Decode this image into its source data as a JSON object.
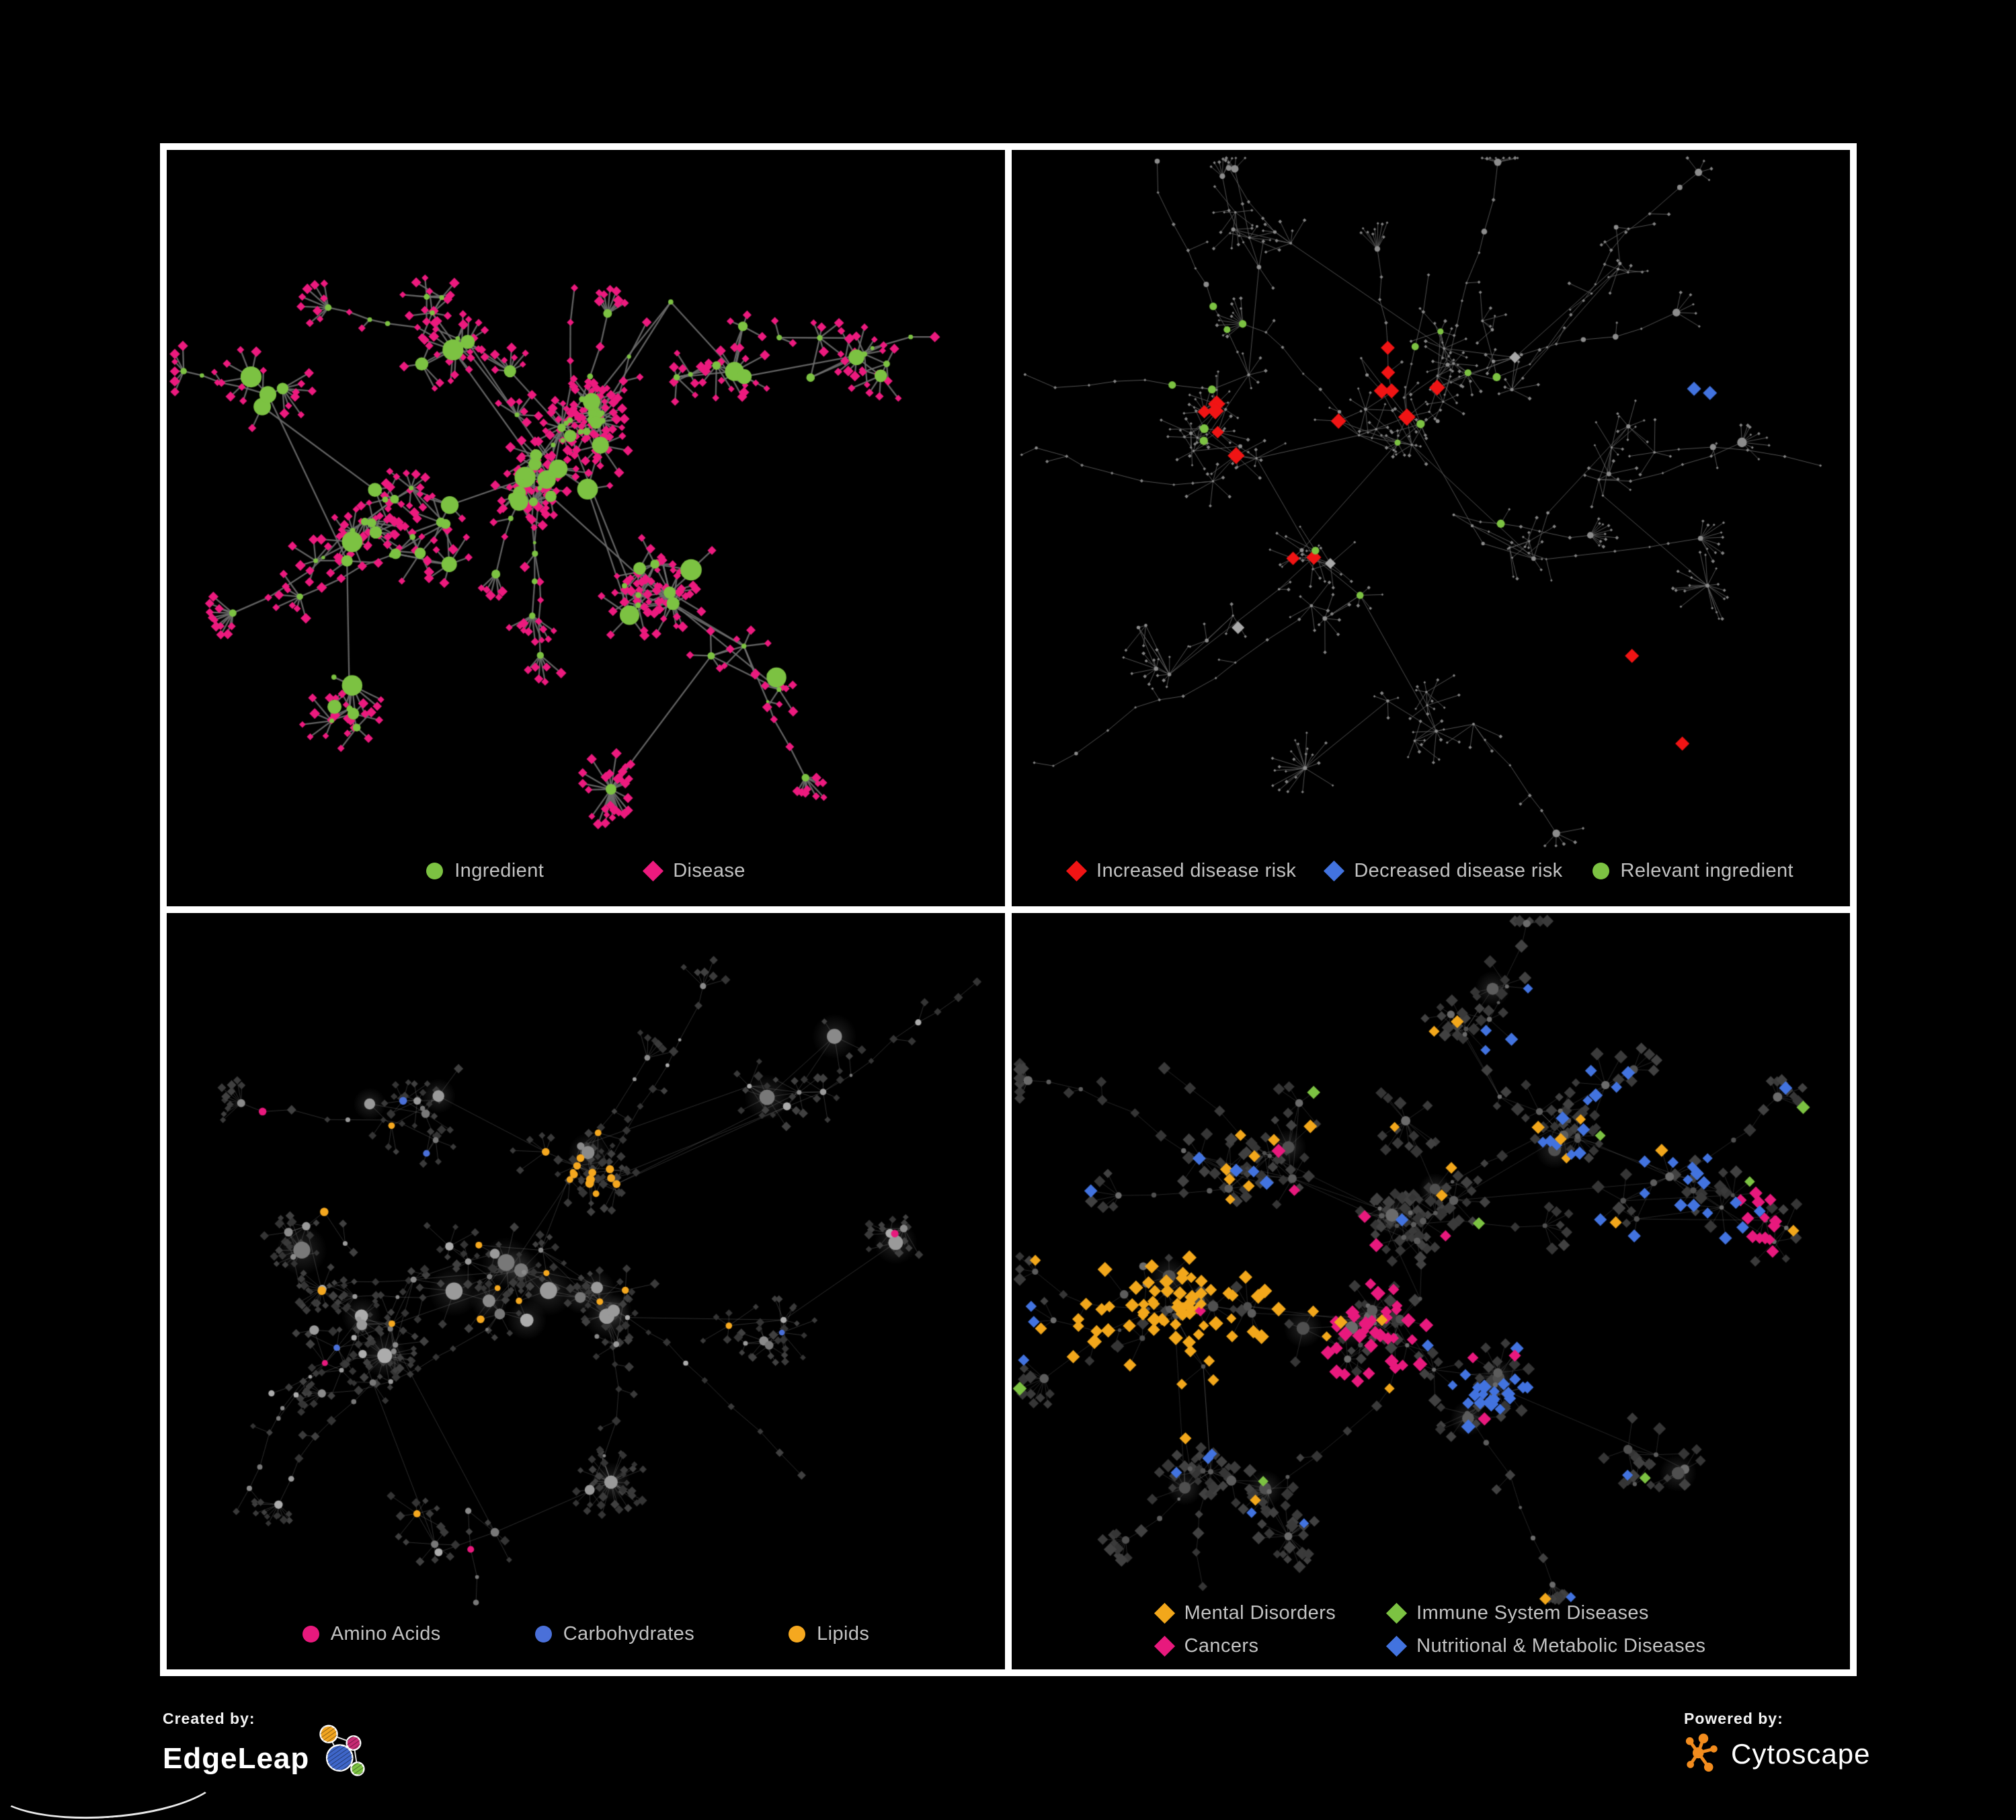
{
  "page": {
    "background": "#000000",
    "frame_color": "#FFFFFF",
    "legend_text_color": "#C2C2C2"
  },
  "panels": [
    {
      "name": "ingredient-disease-network",
      "legend": {
        "items": [
          {
            "label": "Ingredient",
            "shape": "circle",
            "color": "#7CC242"
          },
          {
            "label": "Disease",
            "shape": "diamond",
            "color": "#EC1A7E"
          }
        ]
      },
      "net": {
        "seed": 7,
        "areaH": 1045,
        "clusters": [
          [
            0.27,
            0.52,
            0.09,
            18
          ],
          [
            0.44,
            0.45,
            0.08,
            20
          ],
          [
            0.5,
            0.39,
            0.045,
            14
          ],
          [
            0.58,
            0.62,
            0.06,
            10
          ],
          [
            0.36,
            0.24,
            0.09,
            10
          ],
          [
            0.63,
            0.28,
            0.08,
            8
          ],
          [
            0.24,
            0.78,
            0.07,
            7
          ],
          [
            0.78,
            0.3,
            0.08,
            7
          ],
          [
            0.7,
            0.74,
            0.06,
            5
          ],
          [
            0.13,
            0.35,
            0.05,
            4
          ]
        ],
        "branches": 12,
        "branchLen": [
          3,
          8
        ],
        "chainHubP": 0.3,
        "fanP": 0.7,
        "extraEdges": 30,
        "hubR": [
          3.5,
          16
        ],
        "leafP": 0.85,
        "leaf": [
          2,
          9
        ],
        "leafR": 34,
        "superfans": [
          [
            0.53,
            0.91,
            24,
            8
          ],
          [
            0.6,
            0.63,
            18,
            9
          ]
        ],
        "style": {
          "edge": {
            "color": "#6E6E6E",
            "width": 2.3,
            "alpha": 0.9
          },
          "hub": {
            "shape": "circle",
            "palette": [
              "#7CC242"
            ]
          },
          "leaf": {
            "shape": "diamond",
            "palette": [
              "#EC1A7E"
            ],
            "size": 6.4
          },
          "halo": false,
          "overrides": [],
          "extra": []
        }
      }
    },
    {
      "name": "disease-risk-network",
      "legend": {
        "items": [
          {
            "label": "Increased disease risk",
            "shape": "diamond",
            "color": "#F01414"
          },
          {
            "label": "Decreased disease risk",
            "shape": "diamond",
            "color": "#4273DF"
          },
          {
            "label": "Relevant ingredient",
            "shape": "circle",
            "color": "#7CC242"
          }
        ]
      },
      "net": {
        "seed": 1984,
        "areaH": 1045,
        "clusters": [
          [
            0.25,
            0.4,
            0.1,
            16
          ],
          [
            0.45,
            0.38,
            0.09,
            18
          ],
          [
            0.55,
            0.3,
            0.07,
            12
          ],
          [
            0.35,
            0.6,
            0.08,
            9
          ],
          [
            0.6,
            0.55,
            0.07,
            8
          ],
          [
            0.2,
            0.7,
            0.07,
            6
          ],
          [
            0.75,
            0.45,
            0.07,
            6
          ],
          [
            0.5,
            0.8,
            0.06,
            6
          ],
          [
            0.7,
            0.15,
            0.07,
            6
          ],
          [
            0.3,
            0.15,
            0.08,
            7
          ]
        ],
        "branches": 18,
        "branchLen": [
          5,
          11
        ],
        "chainHubP": 0.25,
        "fanP": 0.8,
        "extraEdges": 22,
        "hubR": [
          1.7,
          3.6
        ],
        "leafP": 0.8,
        "leaf": [
          2,
          8
        ],
        "leafR": 40,
        "superfans": [
          [
            0.35,
            0.88,
            15,
            3
          ],
          [
            0.83,
            0.62,
            12,
            3
          ]
        ],
        "style": {
          "edge": {
            "color": "#606060",
            "width": 0.9,
            "alpha": 0.95
          },
          "hub": {
            "shape": "circle",
            "palette": [
              "#8C8C8C"
            ]
          },
          "leaf": {
            "shape": "diamond",
            "palette": [
              "#848484"
            ],
            "size": 2.4
          },
          "halo": false,
          "overrides": [
            {
              "target": "hub",
              "region": [
                0.13,
                0.41,
                0.085
              ],
              "prob": 0.5,
              "shape": "diamond",
              "color": "#4273DF",
              "size": 10
            },
            {
              "target": "hub",
              "region": [
                0.34,
                0.4,
                0.2
              ],
              "prob": 0.3,
              "shape": "diamond",
              "color": "#F01414",
              "size": 11
            },
            {
              "target": "hub",
              "region": [
                0.36,
                0.42,
                0.26
              ],
              "prob": 0.33,
              "shape": "circle",
              "color": "#7CC242",
              "size": 5.5
            },
            {
              "target": "hub",
              "region": [
                0.4,
                0.45,
                0.3
              ],
              "prob": 0.07,
              "shape": "diamond",
              "color": "#A8A8A8",
              "size": 9.5
            },
            {
              "target": "hub",
              "region": [
                0.55,
                0.45,
                0.42
              ],
              "prob": 0.05,
              "shape": "circle",
              "color": "#7CC242",
              "size": 5
            }
          ],
          "extra": [
            [
              0.814,
              0.34,
              "diamond",
              "#4273DF",
              10.5
            ],
            [
              0.833,
              0.346,
              "diamond",
              "#4273DF",
              10.5
            ],
            [
              0.74,
              0.72,
              "diamond",
              "#F01414",
              10.5
            ],
            [
              0.8,
              0.845,
              "diamond",
              "#F01414",
              10.5
            ],
            [
              0.27,
              0.68,
              "diamond",
              "#A8A8A8",
              9.5
            ]
          ]
        }
      }
    },
    {
      "name": "ingredient-classes-network",
      "legend": {
        "items": [
          {
            "label": "Amino Acids",
            "shape": "circle",
            "color": "#E8197D"
          },
          {
            "label": "Carbohydrates",
            "shape": "circle",
            "color": "#4A70D9"
          },
          {
            "label": "Lipids",
            "shape": "circle",
            "color": "#F5A81F"
          }
        ]
      },
      "net": {
        "seed": 42,
        "areaH": 1045,
        "clusters": [
          [
            0.24,
            0.6,
            0.08,
            16
          ],
          [
            0.4,
            0.52,
            0.08,
            18
          ],
          [
            0.5,
            0.36,
            0.05,
            16
          ],
          [
            0.52,
            0.57,
            0.06,
            10
          ],
          [
            0.3,
            0.29,
            0.09,
            9
          ],
          [
            0.15,
            0.45,
            0.06,
            6
          ],
          [
            0.7,
            0.6,
            0.06,
            6
          ],
          [
            0.75,
            0.25,
            0.07,
            6
          ],
          [
            0.85,
            0.45,
            0.05,
            4
          ],
          [
            0.35,
            0.88,
            0.06,
            5
          ]
        ],
        "branches": 14,
        "branchLen": [
          4,
          9
        ],
        "chainHubP": 0.3,
        "fanP": 0.7,
        "extraEdges": 26,
        "hubR": [
          3.5,
          13
        ],
        "leafP": 0.8,
        "leaf": [
          2,
          8
        ],
        "leafR": 34,
        "superfans": [
          [
            0.53,
            0.81,
            26,
            10
          ],
          [
            0.26,
            0.63,
            16,
            11
          ]
        ],
        "style": {
          "edge": {
            "color": "#CFCFCF",
            "width": 1.0,
            "alpha": 0.22
          },
          "hub": {
            "shape": "circle",
            "palette": [
              "#9A9A9A",
              "#8A8A8A",
              "#ACACAC",
              "#787878"
            ]
          },
          "leaf": {
            "shape": "diamond",
            "palette": [
              "#3A3A3A",
              "#343434",
              "#404040"
            ],
            "size": 5.8
          },
          "halo": true,
          "overrides": [
            {
              "target": "hub",
              "region": [
                0.5,
                0.35,
                0.075
              ],
              "prob": 0.8,
              "shape": "circle",
              "color": "#F5A81F",
              "size": 5.6
            },
            {
              "target": "hub",
              "region": [
                0.5,
                0.4,
                0.11
              ],
              "prob": 0.33,
              "shape": "circle",
              "color": "#4A70D9",
              "size": 5.4
            },
            {
              "target": "hub",
              "region": [
                0.45,
                0.42,
                0.3
              ],
              "prob": 0.1,
              "shape": "circle",
              "color": "#F5A81F",
              "size": 5.4
            },
            {
              "target": "hub",
              "region": null,
              "prob": 0.05,
              "shape": "circle",
              "color": "#F5A81F",
              "size": 5.2
            },
            {
              "target": "hub",
              "region": null,
              "prob": 0.045,
              "shape": "circle",
              "color": "#E8197D",
              "size": 5.4
            },
            {
              "target": "hub",
              "region": null,
              "prob": 0.03,
              "shape": "circle",
              "color": "#4A70D9",
              "size": 5.2
            }
          ],
          "extra": []
        }
      }
    },
    {
      "name": "disease-categories-network",
      "legend": {
        "items": [
          {
            "label": "Mental Disorders",
            "shape": "diamond",
            "color": "#F2A71B"
          },
          {
            "label": "Immune System Diseases",
            "shape": "diamond",
            "color": "#7CC242"
          },
          {
            "label": "Cancers",
            "shape": "diamond",
            "color": "#E8197D"
          },
          {
            "label": "Nutritional & Metabolic Diseases",
            "shape": "diamond",
            "color": "#4273DF"
          }
        ]
      },
      "net": {
        "seed": 512,
        "areaH": 1030,
        "clusters": [
          [
            0.2,
            0.57,
            0.09,
            16
          ],
          [
            0.42,
            0.6,
            0.08,
            16
          ],
          [
            0.48,
            0.44,
            0.06,
            12
          ],
          [
            0.58,
            0.7,
            0.05,
            8
          ],
          [
            0.3,
            0.34,
            0.09,
            9
          ],
          [
            0.65,
            0.3,
            0.08,
            8
          ],
          [
            0.8,
            0.4,
            0.07,
            7
          ],
          [
            0.55,
            0.14,
            0.07,
            6
          ],
          [
            0.25,
            0.82,
            0.06,
            6
          ],
          [
            0.75,
            0.8,
            0.06,
            5
          ],
          [
            0.9,
            0.44,
            0.04,
            4
          ]
        ],
        "branches": 14,
        "branchLen": [
          4,
          9
        ],
        "chainHubP": 0.25,
        "fanP": 0.7,
        "extraEdges": 30,
        "hubR": [
          3,
          10
        ],
        "leafP": 0.9,
        "leaf": [
          3,
          9
        ],
        "leafR": 36,
        "superfans": [
          [
            0.33,
            0.9,
            18,
            6
          ],
          [
            0.47,
            0.3,
            14,
            7
          ]
        ],
        "style": {
          "edge": {
            "color": "#CFCFCF",
            "width": 0.9,
            "alpha": 0.2
          },
          "hub": {
            "shape": "circle",
            "palette": [
              "#4F4F4F",
              "#5C5C5C",
              "#6B6B6B"
            ]
          },
          "leaf": {
            "shape": "diamond",
            "palette": [
              "#3A3A3A",
              "#353535",
              "#414141"
            ],
            "size": 8.0
          },
          "halo": true,
          "overrides": [
            {
              "target": "leaf",
              "region": [
                0.2,
                0.57,
                0.13
              ],
              "prob": 0.8,
              "shape": "diamond",
              "color": "#F2A71B",
              "size": 9.5
            },
            {
              "target": "leaf",
              "region": [
                0.2,
                0.57,
                0.2
              ],
              "prob": 0.3,
              "shape": "diamond",
              "color": "#F2A71B",
              "size": 9
            },
            {
              "target": "leaf",
              "region": [
                0.43,
                0.6,
                0.1
              ],
              "prob": 0.55,
              "shape": "diamond",
              "color": "#E8197D",
              "size": 9.5
            },
            {
              "target": "leaf",
              "region": [
                0.58,
                0.71,
                0.06
              ],
              "prob": 0.75,
              "shape": "diamond",
              "color": "#4273DF",
              "size": 9.5
            },
            {
              "target": "leaf",
              "region": [
                0.75,
                0.28,
                0.22
              ],
              "prob": 0.25,
              "shape": "diamond",
              "color": "#4273DF",
              "size": 9
            },
            {
              "target": "leaf",
              "region": [
                0.9,
                0.44,
                0.05
              ],
              "prob": 0.7,
              "shape": "diamond",
              "color": "#E8197D",
              "size": 9
            },
            {
              "target": "leaf",
              "region": null,
              "prob": 0.02,
              "shape": "diamond",
              "color": "#7CC242",
              "size": 9
            },
            {
              "target": "leaf",
              "region": null,
              "prob": 0.04,
              "shape": "diamond",
              "color": "#4273DF",
              "size": 9
            },
            {
              "target": "leaf",
              "region": null,
              "prob": 0.035,
              "shape": "diamond",
              "color": "#F2A71B",
              "size": 9
            },
            {
              "target": "leaf",
              "region": null,
              "prob": 0.03,
              "shape": "diamond",
              "color": "#E8197D",
              "size": 9
            }
          ],
          "extra": []
        }
      }
    }
  ],
  "footer": {
    "created_by": "Created by:",
    "brand_left": "EdgeLeap",
    "powered_by": "Powered by:",
    "brand_right": "Cytoscape",
    "edgeleap_colors": {
      "orange": "#F2A51F",
      "magenta": "#C72B74",
      "blue": "#3E66C9",
      "green": "#7CC242"
    },
    "cytoscape_color": "#F28C1E"
  }
}
